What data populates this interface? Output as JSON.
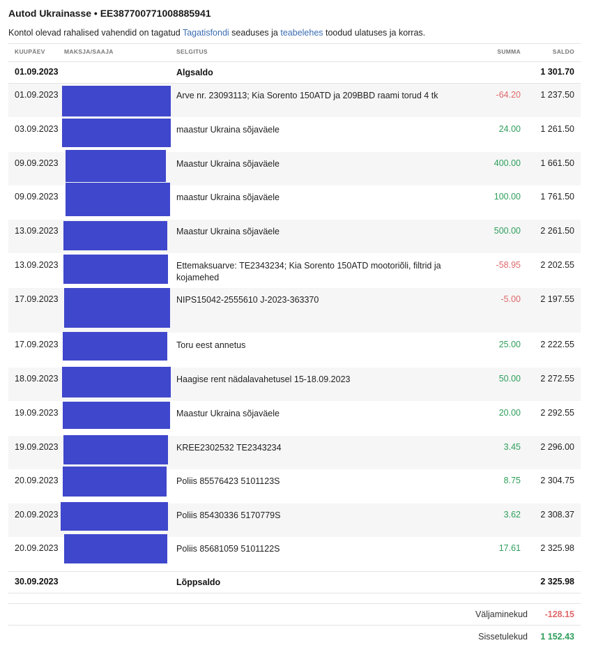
{
  "header": {
    "title": "Autod Ukrainasse • EE387700771008885941",
    "notice_pre": "Kontol olevad rahalised vahendid on tagatud ",
    "link1": "Tagatisfondi",
    "notice_mid": " seaduses ja ",
    "link2": "teabelehes",
    "notice_post": " toodud ulatuses ja korras."
  },
  "columns": {
    "date": "KUUPÄEV",
    "party": "MAKSJA/SAAJA",
    "desc": "SELGITUS",
    "amount": "SUMMA",
    "balance": "SALDO"
  },
  "opening": {
    "date": "01.09.2023",
    "label": "Algsaldo",
    "balance": "1 301.70"
  },
  "transactions": [
    {
      "date": "01.09.2023",
      "desc": "Arve nr. 23093113; Kia Sorento 150ATD ja 209BBD raami torud 4 tk",
      "amount": "-64.20",
      "balance": "1 237.50"
    },
    {
      "date": "03.09.2023",
      "desc": "maastur Ukraina sõjaväele",
      "amount": "24.00",
      "balance": "1 261.50"
    },
    {
      "date": "09.09.2023",
      "desc": "Maastur Ukraina sõjaväele",
      "amount": "400.00",
      "balance": "1 661.50"
    },
    {
      "date": "09.09.2023",
      "desc": "maastur Ukraina sõjaväele",
      "amount": "100.00",
      "balance": "1 761.50"
    },
    {
      "date": "13.09.2023",
      "desc": "Maastur Ukraina sõjaväele",
      "amount": "500.00",
      "balance": "2 261.50"
    },
    {
      "date": "13.09.2023",
      "desc": "Ettemaksuarve: TE2343234; Kia Sorento 150ATD mootoriõli, filtrid ja kojamehed",
      "amount": "-58.95",
      "balance": "2 202.55"
    },
    {
      "date": "17.09.2023",
      "desc": "NIPS15042-2555610 J-2023-363370",
      "amount": "-5.00",
      "balance": "2 197.55"
    },
    {
      "date": "17.09.2023",
      "desc": "Toru eest annetus",
      "amount": "25.00",
      "balance": "2 222.55"
    },
    {
      "date": "18.09.2023",
      "desc": "Haagise rent nädalavahetusel 15-18.09.2023",
      "amount": "50.00",
      "balance": "2 272.55"
    },
    {
      "date": "19.09.2023",
      "desc": "Maastur Ukraina sõjaväele",
      "amount": "20.00",
      "balance": "2 292.55"
    },
    {
      "date": "19.09.2023",
      "desc": "KREE2302532 TE2343234",
      "amount": "3.45",
      "balance": "2 296.00"
    },
    {
      "date": "20.09.2023",
      "desc": "Poliis 85576423 5101123S",
      "amount": "8.75",
      "balance": "2 304.75"
    },
    {
      "date": "20.09.2023",
      "desc": "Poliis 85430336 5170779S",
      "amount": "3.62",
      "balance": "2 308.37"
    },
    {
      "date": "20.09.2023",
      "desc": "Poliis 85681059 5101122S",
      "amount": "17.61",
      "balance": "2 325.98"
    }
  ],
  "closing": {
    "date": "30.09.2023",
    "label": "Lõppsaldo",
    "balance": "2 325.98"
  },
  "totals": {
    "outgoing_label": "Väljaminekud",
    "outgoing_value": "-128.15",
    "incoming_label": "Sissetulekud",
    "incoming_value": "1 152.43"
  },
  "colors": {
    "positive": "#2e9e5b",
    "negative": "#e0686a",
    "link": "#3b6db3",
    "redaction": "#3f47cc"
  }
}
